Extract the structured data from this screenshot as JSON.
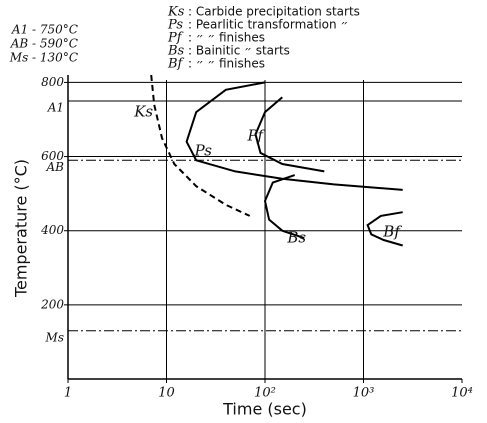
{
  "chart_data": {
    "type": "line",
    "xlabel": "Time (sec)",
    "ylabel": "Temperature (°C)",
    "xscale": "log",
    "xlim": [
      1,
      10000
    ],
    "xticks": [
      1,
      10,
      {
        "value": 100,
        "label": "10²"
      },
      {
        "value": 1000,
        "label": "10³"
      },
      {
        "value": 10000,
        "label": "10⁴"
      }
    ],
    "ylim": [
      0,
      820
    ],
    "yticks": [
      200,
      400,
      600,
      800
    ],
    "grid": true,
    "legend_rows": [
      [
        "Ks",
        ": Carbide precipitation starts"
      ],
      [
        "Ps",
        ": Pearlitic transformation  ״"
      ],
      [
        "Pf",
        ":       ״                  ״            finishes"
      ],
      [
        "Bs",
        ": Bainitic             ״            starts"
      ],
      [
        "Bf",
        ":      ״                  ״            finishes"
      ]
    ],
    "constants": [
      "A1 - 750°C",
      "AB - 590°C",
      "Ms - 130°C"
    ],
    "ref_lines": [
      {
        "label": "A1",
        "value": 750,
        "style": "solid"
      },
      {
        "label": "AB",
        "value": 590,
        "style": "dashdot"
      },
      {
        "label": "Ms",
        "value": 130,
        "style": "dashdot"
      }
    ],
    "series": [
      {
        "name": "Ks",
        "color": "#000000",
        "dashed": true,
        "x": [
          7,
          7.5,
          9,
          12,
          20,
          40,
          70
        ],
        "values": [
          820,
          740,
          650,
          580,
          520,
          470,
          440
        ]
      },
      {
        "name": "Ps",
        "color": "#000000",
        "dashed": false,
        "x": [
          100,
          40,
          20,
          16,
          20,
          50,
          150,
          500,
          2500
        ],
        "values": [
          800,
          780,
          720,
          640,
          590,
          560,
          540,
          525,
          510
        ]
      },
      {
        "name": "Pf",
        "color": "#000000",
        "dashed": false,
        "x": [
          150,
          100,
          80,
          90,
          150,
          400
        ],
        "values": [
          760,
          720,
          660,
          610,
          580,
          560
        ]
      },
      {
        "name": "Bs",
        "color": "#000000",
        "dashed": false,
        "x": [
          200,
          120,
          100,
          110,
          150,
          250
        ],
        "values": [
          550,
          530,
          480,
          430,
          400,
          380
        ]
      },
      {
        "name": "Bf",
        "color": "#000000",
        "dashed": false,
        "x": [
          2500,
          1500,
          1100,
          1200,
          1600,
          2500
        ],
        "values": [
          450,
          440,
          415,
          390,
          375,
          360
        ]
      }
    ]
  }
}
